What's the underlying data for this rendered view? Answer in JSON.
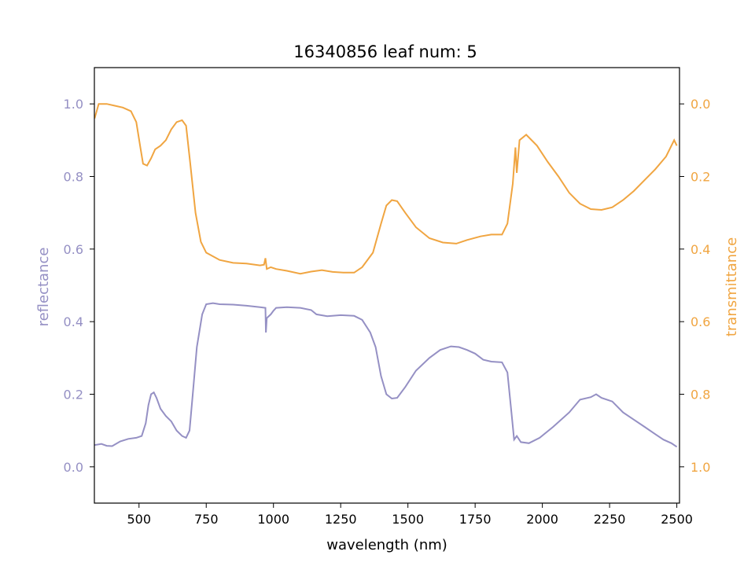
{
  "chart_data": {
    "type": "line",
    "title": "16340856 leaf num: 5",
    "xlabel": "wavelength (nm)",
    "ylabel_left": "reflectance",
    "ylabel_right": "transmittance",
    "xlim": [
      334,
      2510
    ],
    "ylim_left": [
      -0.1,
      1.1
    ],
    "ylim_right": [
      1.1,
      -0.1
    ],
    "right_axis_inverted": true,
    "grid": false,
    "x_ticks": [
      "500",
      "750",
      "1000",
      "1250",
      "1500",
      "1750",
      "2000",
      "2250",
      "2500"
    ],
    "y_left_ticks": [
      "0.0",
      "0.2",
      "0.4",
      "0.6",
      "0.8",
      "1.0"
    ],
    "y_right_ticks": [
      "0.0",
      "0.2",
      "0.4",
      "0.6",
      "0.8",
      "1.0"
    ],
    "colors": {
      "reflectance": "#9590c4",
      "transmittance": "#f0a541"
    },
    "series": [
      {
        "name": "reflectance",
        "axis": "left",
        "points": [
          [
            335,
            0.06
          ],
          [
            360,
            0.063
          ],
          [
            380,
            0.058
          ],
          [
            400,
            0.057
          ],
          [
            430,
            0.07
          ],
          [
            460,
            0.077
          ],
          [
            490,
            0.08
          ],
          [
            510,
            0.085
          ],
          [
            525,
            0.12
          ],
          [
            535,
            0.17
          ],
          [
            545,
            0.2
          ],
          [
            555,
            0.205
          ],
          [
            565,
            0.19
          ],
          [
            580,
            0.16
          ],
          [
            600,
            0.14
          ],
          [
            620,
            0.125
          ],
          [
            640,
            0.1
          ],
          [
            660,
            0.085
          ],
          [
            675,
            0.08
          ],
          [
            688,
            0.1
          ],
          [
            700,
            0.2
          ],
          [
            715,
            0.33
          ],
          [
            735,
            0.42
          ],
          [
            750,
            0.448
          ],
          [
            775,
            0.451
          ],
          [
            800,
            0.448
          ],
          [
            850,
            0.447
          ],
          [
            900,
            0.444
          ],
          [
            950,
            0.44
          ],
          [
            970,
            0.438
          ],
          [
            972,
            0.37
          ],
          [
            975,
            0.41
          ],
          [
            990,
            0.42
          ],
          [
            1000,
            0.43
          ],
          [
            1010,
            0.438
          ],
          [
            1050,
            0.44
          ],
          [
            1100,
            0.438
          ],
          [
            1140,
            0.432
          ],
          [
            1160,
            0.42
          ],
          [
            1200,
            0.415
          ],
          [
            1250,
            0.418
          ],
          [
            1300,
            0.416
          ],
          [
            1330,
            0.405
          ],
          [
            1360,
            0.37
          ],
          [
            1380,
            0.33
          ],
          [
            1400,
            0.25
          ],
          [
            1420,
            0.2
          ],
          [
            1440,
            0.188
          ],
          [
            1460,
            0.19
          ],
          [
            1490,
            0.22
          ],
          [
            1530,
            0.265
          ],
          [
            1580,
            0.3
          ],
          [
            1620,
            0.322
          ],
          [
            1660,
            0.332
          ],
          [
            1690,
            0.33
          ],
          [
            1720,
            0.322
          ],
          [
            1750,
            0.312
          ],
          [
            1780,
            0.295
          ],
          [
            1810,
            0.29
          ],
          [
            1850,
            0.288
          ],
          [
            1870,
            0.26
          ],
          [
            1885,
            0.15
          ],
          [
            1895,
            0.075
          ],
          [
            1905,
            0.085
          ],
          [
            1920,
            0.068
          ],
          [
            1950,
            0.065
          ],
          [
            1990,
            0.08
          ],
          [
            2040,
            0.11
          ],
          [
            2100,
            0.15
          ],
          [
            2140,
            0.185
          ],
          [
            2180,
            0.192
          ],
          [
            2200,
            0.2
          ],
          [
            2220,
            0.19
          ],
          [
            2260,
            0.18
          ],
          [
            2300,
            0.15
          ],
          [
            2340,
            0.13
          ],
          [
            2380,
            0.11
          ],
          [
            2420,
            0.09
          ],
          [
            2450,
            0.075
          ],
          [
            2480,
            0.065
          ],
          [
            2500,
            0.055
          ]
        ]
      },
      {
        "name": "transmittance",
        "axis": "right",
        "points": [
          [
            335,
            0.04
          ],
          [
            350,
            0.0
          ],
          [
            380,
            0.0
          ],
          [
            410,
            0.005
          ],
          [
            440,
            0.01
          ],
          [
            470,
            0.02
          ],
          [
            490,
            0.05
          ],
          [
            505,
            0.12
          ],
          [
            515,
            0.165
          ],
          [
            530,
            0.17
          ],
          [
            545,
            0.15
          ],
          [
            560,
            0.125
          ],
          [
            580,
            0.115
          ],
          [
            600,
            0.1
          ],
          [
            620,
            0.07
          ],
          [
            640,
            0.05
          ],
          [
            660,
            0.045
          ],
          [
            675,
            0.06
          ],
          [
            690,
            0.16
          ],
          [
            710,
            0.3
          ],
          [
            730,
            0.38
          ],
          [
            750,
            0.41
          ],
          [
            800,
            0.43
          ],
          [
            850,
            0.438
          ],
          [
            900,
            0.44
          ],
          [
            950,
            0.445
          ],
          [
            965,
            0.443
          ],
          [
            970,
            0.425
          ],
          [
            975,
            0.455
          ],
          [
            990,
            0.45
          ],
          [
            1010,
            0.455
          ],
          [
            1050,
            0.46
          ],
          [
            1100,
            0.468
          ],
          [
            1140,
            0.462
          ],
          [
            1180,
            0.458
          ],
          [
            1220,
            0.463
          ],
          [
            1260,
            0.465
          ],
          [
            1300,
            0.465
          ],
          [
            1330,
            0.45
          ],
          [
            1370,
            0.41
          ],
          [
            1400,
            0.33
          ],
          [
            1420,
            0.28
          ],
          [
            1440,
            0.265
          ],
          [
            1460,
            0.268
          ],
          [
            1490,
            0.3
          ],
          [
            1530,
            0.34
          ],
          [
            1580,
            0.37
          ],
          [
            1630,
            0.382
          ],
          [
            1680,
            0.385
          ],
          [
            1720,
            0.375
          ],
          [
            1770,
            0.365
          ],
          [
            1810,
            0.36
          ],
          [
            1850,
            0.36
          ],
          [
            1870,
            0.33
          ],
          [
            1890,
            0.22
          ],
          [
            1900,
            0.12
          ],
          [
            1905,
            0.19
          ],
          [
            1915,
            0.1
          ],
          [
            1940,
            0.085
          ],
          [
            1980,
            0.115
          ],
          [
            2020,
            0.16
          ],
          [
            2060,
            0.2
          ],
          [
            2100,
            0.245
          ],
          [
            2140,
            0.275
          ],
          [
            2180,
            0.29
          ],
          [
            2220,
            0.292
          ],
          [
            2260,
            0.285
          ],
          [
            2300,
            0.265
          ],
          [
            2340,
            0.24
          ],
          [
            2380,
            0.21
          ],
          [
            2420,
            0.18
          ],
          [
            2460,
            0.145
          ],
          [
            2490,
            0.1
          ],
          [
            2500,
            0.115
          ]
        ]
      }
    ]
  }
}
